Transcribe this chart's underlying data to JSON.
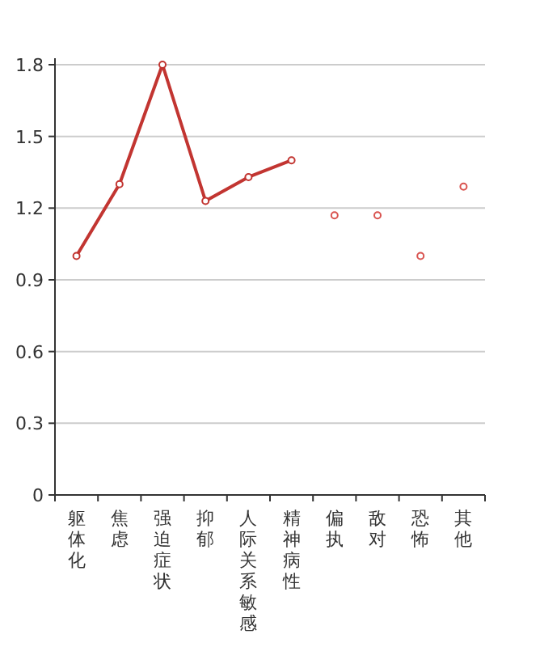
{
  "chart_data": {
    "type": "line",
    "categories": [
      "躯体化",
      "焦虑",
      "强迫症状",
      "抑郁",
      "人际关系敏感",
      "精神病性",
      "偏执",
      "敌对",
      "恐怖",
      "其他"
    ],
    "series": [
      {
        "color": "#c23531",
        "values": [
          1.0,
          1.3,
          1.8,
          1.23,
          1.33,
          1.4,
          null,
          null,
          null,
          null
        ]
      },
      {
        "type": "scatter",
        "color": "#d9534f",
        "values": [
          null,
          null,
          null,
          null,
          null,
          null,
          1.17,
          1.17,
          1.0,
          1.29
        ]
      }
    ],
    "ylim": [
      0,
      1.8
    ],
    "yticks": [
      0,
      0.3,
      0.6,
      0.9,
      1.2,
      1.5,
      1.8
    ],
    "grid": "y",
    "marker": "circle"
  }
}
